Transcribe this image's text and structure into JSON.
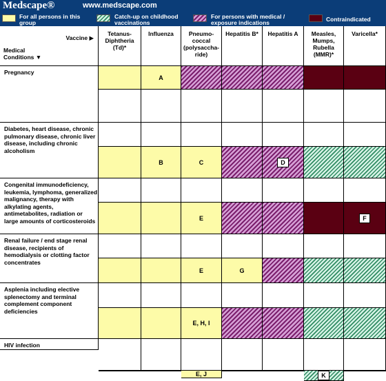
{
  "banner": {
    "logo": "Medscape®",
    "url": "www.medscape.com"
  },
  "legend": [
    {
      "key": "yellow",
      "label": "For all persons in this group"
    },
    {
      "key": "green",
      "label": "Catch-up on childhood vaccinations"
    },
    {
      "key": "purple",
      "label": "For persons with medical / exposure indications"
    },
    {
      "key": "contra",
      "label": "Contraindicated"
    }
  ],
  "colors": {
    "yellow": "#fdfba8",
    "purple": "#7a1e6c",
    "green": "#2f8a62",
    "contra": "#5a0012",
    "header_blue": "#0b3d78"
  },
  "table": {
    "corner": {
      "vaccine_label": "Vaccine",
      "conditions_label": "Medical Conditions"
    },
    "vaccines": [
      "Tetanus-Diphtheria (Td)*",
      "Influenza",
      "Pneumo-coccal (polysaccha-ride)",
      "Hepatitis B*",
      "Hepatitis A",
      "Measles, Mumps, Rubella (MMR)*",
      "Varicella*"
    ],
    "conditions": [
      {
        "name": "Pregnancy",
        "cells": [
          {
            "type": "yellow"
          },
          {
            "type": "yellow",
            "text": "A"
          },
          {
            "type": "purple"
          },
          {
            "type": "purple"
          },
          {
            "type": "purple"
          },
          {
            "type": "contra"
          },
          {
            "type": "contra"
          }
        ]
      },
      {
        "name": "Diabetes, heart disease, chronic pulmonary disease, chronic liver disease, including chronic alcoholism",
        "cells": [
          {
            "type": "yellow"
          },
          {
            "type": "yellow",
            "text": "B"
          },
          {
            "type": "yellow",
            "text": "C"
          },
          {
            "type": "purple"
          },
          {
            "type": "purple",
            "text": "D",
            "boxed": true
          },
          {
            "type": "green"
          },
          {
            "type": "green"
          }
        ]
      },
      {
        "name": "Congenital immunodeficiency, leukemia, lymphoma, generalized malignancy, therapy with alkylating agents, antimetabolites, radiation or large amounts of corticosteroids",
        "cells": [
          {
            "type": "yellow"
          },
          {
            "type": "yellow"
          },
          {
            "type": "yellow",
            "text": "E"
          },
          {
            "type": "purple"
          },
          {
            "type": "purple"
          },
          {
            "type": "contra"
          },
          {
            "type": "contra",
            "text": "F",
            "boxed": true
          }
        ]
      },
      {
        "name": "Renal failure / end stage renal disease, recipients of hemodialysis or clotting factor concentrates",
        "cells": [
          {
            "type": "yellow"
          },
          {
            "type": "yellow"
          },
          {
            "type": "yellow",
            "text": "E"
          },
          {
            "type": "yellow",
            "text": "G"
          },
          {
            "type": "purple"
          },
          {
            "type": "green"
          },
          {
            "type": "green"
          }
        ]
      },
      {
        "name": "Asplenia including elective splenectomy and terminal complement component deficiencies",
        "cells": [
          {
            "type": "yellow"
          },
          {
            "type": "yellow"
          },
          {
            "type": "yellow",
            "text": "E, H, I"
          },
          {
            "type": "purple"
          },
          {
            "type": "purple"
          },
          {
            "type": "green"
          },
          {
            "type": "green"
          }
        ]
      },
      {
        "name": "HIV infection",
        "cells": [
          {
            "type": "yellow"
          },
          {
            "type": "yellow"
          },
          {
            "type": "yellow",
            "text": "E, J"
          },
          {
            "type": "purple"
          },
          {
            "type": "purple"
          },
          {
            "type": "green",
            "text": "K",
            "boxed": true
          },
          {
            "type": "contra"
          }
        ]
      }
    ]
  }
}
